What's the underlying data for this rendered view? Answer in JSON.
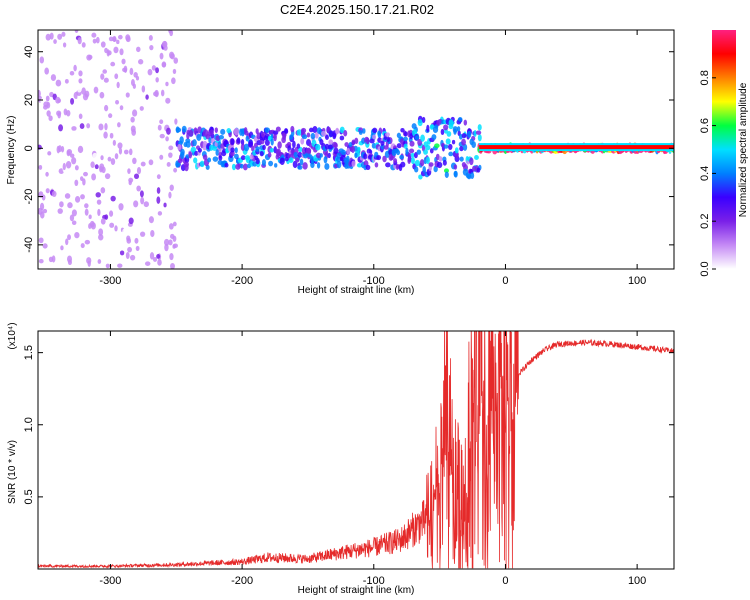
{
  "title": "C2E4.2025.150.17.21.R02",
  "colors": {
    "snr_line": "#e52a2a",
    "frame": "#000000",
    "colormap": [
      "#ffffff",
      "#c58af5",
      "#7a20e8",
      "#3a00ff",
      "#0080ff",
      "#00e0ff",
      "#00ff40",
      "#ffff00",
      "#ff8000",
      "#ff0000",
      "#ff2080"
    ]
  },
  "chart_data": [
    {
      "type": "heatmap",
      "title": "C2E4.2025.150.17.21.R02",
      "xlabel": "Height of straight line (km)",
      "ylabel": "Frequency (Hz)",
      "xlim": [
        -355,
        128
      ],
      "ylim": [
        -50,
        49
      ],
      "x_ticks": [
        -300,
        -200,
        -100,
        0,
        100
      ],
      "y_ticks": [
        -40,
        -20,
        0,
        20,
        40
      ],
      "grid": false,
      "colorbar": {
        "label": "Normalized spectral amplitude",
        "range": [
          0,
          1
        ],
        "ticks": [
          0.0,
          0.2,
          0.4,
          0.6,
          0.8
        ]
      },
      "description_regions": [
        {
          "x_range": [
            -355,
            -250
          ],
          "freq_spread": 49,
          "amplitude": 0.1
        },
        {
          "x_range": [
            -250,
            -70
          ],
          "freq_spread": 8,
          "amplitude": 0.3
        },
        {
          "x_range": [
            -70,
            -20
          ],
          "freq_spread": 12,
          "amplitude": 0.35
        },
        {
          "x_range": [
            -20,
            128
          ],
          "freq_spread": 1,
          "amplitude": 0.9
        }
      ]
    },
    {
      "type": "line",
      "xlabel": "Height of straight line (km)",
      "ylabel": "SNR (10 * v/v)",
      "y_multiplier": "(x10⁴)",
      "xlim": [
        -355,
        128
      ],
      "ylim": [
        0,
        1.65
      ],
      "x_ticks": [
        -300,
        -200,
        -100,
        0,
        100
      ],
      "y_ticks": [
        0.5,
        1.0,
        1.5
      ],
      "y_tick_labels": [
        "0.5",
        "1.0",
        "1.5"
      ],
      "series": [
        {
          "x": [
            -355,
            -300,
            -250,
            -200,
            -180,
            -150,
            -120,
            -100,
            -80,
            -60,
            -50,
            -45,
            -40,
            -35,
            -30,
            -25,
            -20,
            -15,
            -10,
            -5,
            0,
            10,
            20,
            30,
            40,
            60,
            80,
            100,
            128
          ],
          "values": [
            0.02,
            0.02,
            0.03,
            0.05,
            0.08,
            0.07,
            0.12,
            0.15,
            0.2,
            0.35,
            0.6,
            1.1,
            0.7,
            0.5,
            0.6,
            1.2,
            1.65,
            0.9,
            1.1,
            1.2,
            1.25,
            1.35,
            1.45,
            1.52,
            1.56,
            1.57,
            1.56,
            1.54,
            1.51
          ]
        }
      ]
    }
  ]
}
